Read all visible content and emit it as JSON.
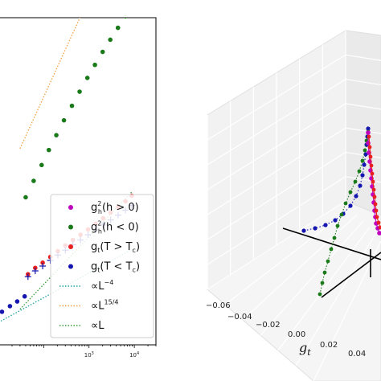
{
  "chart_data": [
    {
      "type": "scatter",
      "x_scale": "log",
      "y_scale": "log",
      "xlim": [
        10,
        30000
      ],
      "ylim": [
        1,
        100000
      ],
      "x_tick_labels": [
        {
          "value": 1000,
          "base": "10",
          "exp": "3"
        },
        {
          "value": 10000,
          "base": "10",
          "exp": "4"
        }
      ],
      "legend_position": "lower-right",
      "series": [
        {
          "name_main": "g",
          "name_sub": "h",
          "name_sup": "2",
          "name_tail": "(h > 0)",
          "marker": "dot",
          "color": "#bf00bf",
          "x": [],
          "y": []
        },
        {
          "name_main": "g",
          "name_sub": "h",
          "name_sup": "2",
          "name_tail": "(h < 0)",
          "marker": "dot",
          "color": "#1a7a1a",
          "x": [
            40,
            60,
            90,
            130,
            190,
            280,
            420,
            620,
            920,
            1350,
            2000,
            2950,
            4350,
            6400,
            9000
          ],
          "y": [
            180,
            320,
            560,
            950,
            1600,
            2700,
            4500,
            7400,
            12000,
            19000,
            30000,
            46000,
            70000,
            105000,
            150000
          ]
        },
        {
          "name_main": "g",
          "name_sub": "t",
          "name_tail": "(T > T",
          "name_tail_sub": "c",
          "name_tail_end": ")",
          "marker": "dot",
          "color": "#e82020",
          "x": [
            45,
            65,
            95,
            140,
            205,
            300,
            440,
            650,
            950,
            1400,
            2050,
            3000,
            4400,
            6400,
            8800
          ],
          "y": [
            12,
            15,
            18,
            22,
            27,
            33,
            40,
            48,
            58,
            71,
            86,
            105,
            128,
            156,
            190
          ]
        },
        {
          "name_main": "g",
          "name_sub": "t",
          "name_tail": "(T < T",
          "name_tail_sub": "c",
          "name_tail_end": ")",
          "marker": "dot",
          "color": "#1515b0",
          "x": [
            12,
            18,
            26,
            38
          ],
          "y": [
            3.2,
            3.9,
            4.6,
            5.5
          ]
        },
        {
          "name": "",
          "marker": "plus",
          "color": "#1515b0",
          "x": [
            45,
            65,
            95,
            140,
            205,
            300,
            440,
            650,
            950,
            1400,
            2050,
            3000,
            4400,
            6400,
            8800
          ],
          "y": [
            11,
            13.5,
            16,
            19.5,
            23.5,
            28,
            34,
            40,
            48,
            57,
            68,
            81,
            96,
            114,
            135
          ]
        }
      ],
      "reference_lines": [
        {
          "label_prefix": "∝L",
          "label_sup": "−4",
          "style": "dotted",
          "color": "#20a0a0",
          "points": [
            [
              10,
              2.2
            ],
            [
              10000,
              30
            ]
          ]
        },
        {
          "label_prefix": "∝L",
          "label_sup": "15/4",
          "style": "dotted",
          "color": "#f0a040",
          "points": [
            [
              30,
              1000
            ],
            [
              1000,
              200000
            ]
          ]
        },
        {
          "label_prefix": "∝L",
          "label_sup": "",
          "style": "dotted",
          "color": "#3a9a3a",
          "points": [
            [
              30,
              3.5
            ],
            [
              9000,
              220
            ]
          ]
        }
      ]
    },
    {
      "type": "scatter",
      "projection": "3d",
      "xlabel_main": "g",
      "xlabel_sub": "t",
      "x_ticks": [
        "−0.06",
        "−0.04",
        "−0.02",
        "0.00",
        "0.02",
        "0.04"
      ],
      "series": [
        {
          "name": "magenta",
          "color": "#bf00bf"
        },
        {
          "name": "green",
          "color": "#1a7a1a"
        },
        {
          "name": "red",
          "color": "#e82020"
        },
        {
          "name": "blue",
          "color": "#1515b0"
        }
      ]
    }
  ]
}
